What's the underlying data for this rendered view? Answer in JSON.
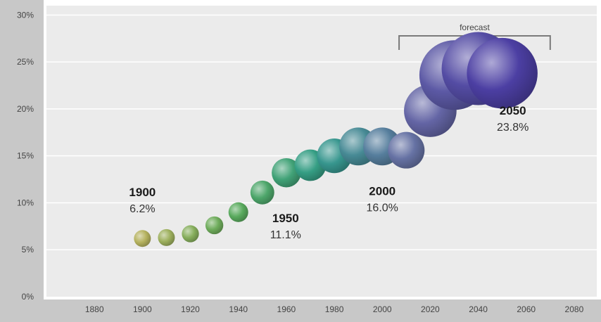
{
  "chart_data": {
    "type": "scatter",
    "title": "",
    "xlabel": "",
    "ylabel": "",
    "xlim": [
      1860,
      2090
    ],
    "ylim": [
      0,
      31
    ],
    "x_ticks": [
      1880,
      1900,
      1920,
      1940,
      1960,
      1980,
      2000,
      2020,
      2040,
      2060,
      2080
    ],
    "y_ticks": [
      0,
      5,
      10,
      15,
      20,
      25,
      30
    ],
    "y_tick_suffix": "%",
    "points": [
      {
        "x": 1900,
        "y": 6.2
      },
      {
        "x": 1910,
        "y": 6.3
      },
      {
        "x": 1920,
        "y": 6.7
      },
      {
        "x": 1930,
        "y": 7.6
      },
      {
        "x": 1940,
        "y": 9.0
      },
      {
        "x": 1950,
        "y": 11.1
      },
      {
        "x": 1960,
        "y": 13.2
      },
      {
        "x": 1970,
        "y": 14.0
      },
      {
        "x": 1980,
        "y": 15.0
      },
      {
        "x": 1990,
        "y": 16.0
      },
      {
        "x": 2000,
        "y": 16.0
      },
      {
        "x": 2010,
        "y": 15.6
      },
      {
        "x": 2020,
        "y": 19.8
      },
      {
        "x": 2030,
        "y": 23.6
      },
      {
        "x": 2040,
        "y": 24.3
      },
      {
        "x": 2050,
        "y": 23.8
      }
    ],
    "bubble_size_by_value": true,
    "annotations": [
      {
        "year": "1900",
        "value": "6.2%",
        "x": 1900,
        "y": 6.2
      },
      {
        "year": "1950",
        "value": "11.1%",
        "x": 1950,
        "y": 11.1
      },
      {
        "year": "2000",
        "value": "16.0%",
        "x": 2000,
        "y": 16.0
      },
      {
        "year": "2050",
        "value": "23.8%",
        "x": 2050,
        "y": 23.8
      }
    ],
    "forecast": {
      "label": "forecast",
      "from": 2007,
      "to": 2070
    },
    "grid": "horizontal",
    "colors": {
      "plot_bg": "#ebebeb",
      "axis_bg": "#c8c8c8",
      "grid": "#ffffff",
      "bracket": "#7a7a7a",
      "gradient_stops": [
        "#b5b25e",
        "#5cab5a",
        "#2f9c8a",
        "#6a6fa6",
        "#4c3fa3"
      ]
    }
  }
}
